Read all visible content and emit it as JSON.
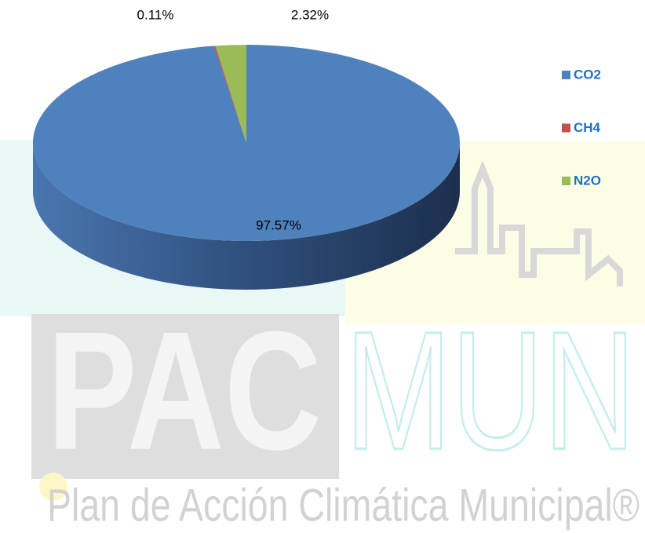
{
  "chart_data": {
    "type": "pie",
    "categories": [
      "CO2",
      "CH4",
      "N2O"
    ],
    "values": [
      97.57,
      0.11,
      2.32
    ],
    "value_labels": [
      "97.57%",
      "0.11%",
      "2.32%"
    ],
    "colors": [
      "#4f81bd",
      "#c0504d",
      "#9bbb59"
    ],
    "legend": "right"
  },
  "watermark": {
    "left": "PAC",
    "right": "MUN",
    "tagline": "Plan de Acción Climática Municipal®"
  }
}
